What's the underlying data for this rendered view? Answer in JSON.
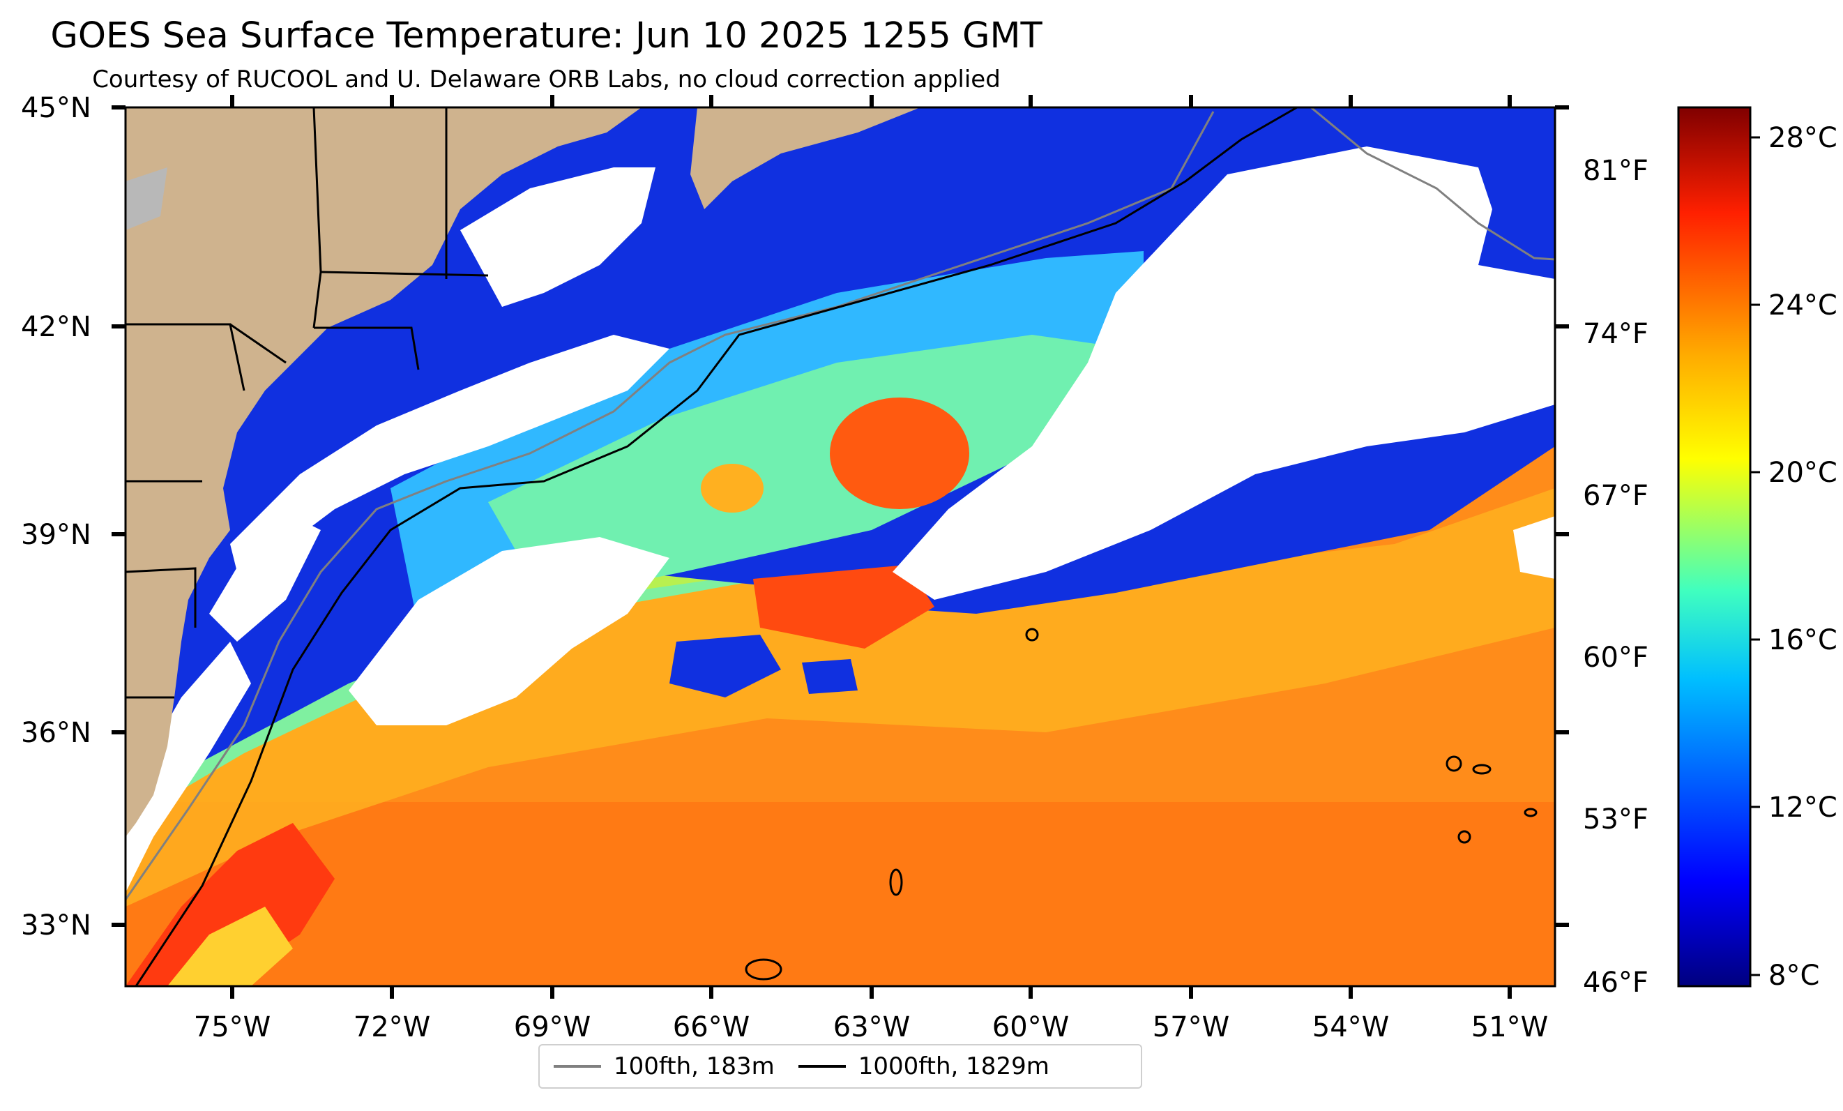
{
  "title": "GOES Sea Surface Temperature: Jun 10 2025 1255 GMT",
  "subtitle": "Courtesy of RUCOOL and U. Delaware ORB Labs, no cloud correction applied",
  "map": {
    "lat_labels": [
      "45°N",
      "42°N",
      "39°N",
      "36°N",
      "33°N"
    ],
    "lon_labels": [
      "75°W",
      "72°W",
      "69°W",
      "66°W",
      "63°W",
      "60°W",
      "57°W",
      "54°W",
      "51°W"
    ],
    "fahrenheit_labels": [
      "81°F",
      "74°F",
      "67°F",
      "60°F",
      "53°F",
      "46°F"
    ],
    "extent": {
      "lon_min": -77,
      "lon_max": -50.2,
      "lat_min": 32,
      "lat_max": 45
    }
  },
  "colorbar": {
    "labels": [
      "28°C",
      "24°C",
      "20°C",
      "16°C",
      "12°C",
      "8°C"
    ],
    "range_c": [
      7.8,
      28.6
    ],
    "colormap": [
      "#00007f",
      "#0000ff",
      "#007fff",
      "#00ffff",
      "#7fff7f",
      "#ffff00",
      "#ff7f00",
      "#ff0000",
      "#7f0000"
    ]
  },
  "legend": {
    "items": [
      {
        "label": "100fth, 183m",
        "color": "#808080"
      },
      {
        "label": "1000fth, 1829m",
        "color": "#000000"
      }
    ]
  },
  "colors": {
    "land": "#cfb38e",
    "cloud": "#ffffff",
    "warm_sst": "#ff8c1a",
    "cold_sst": "#0a1ccc"
  }
}
